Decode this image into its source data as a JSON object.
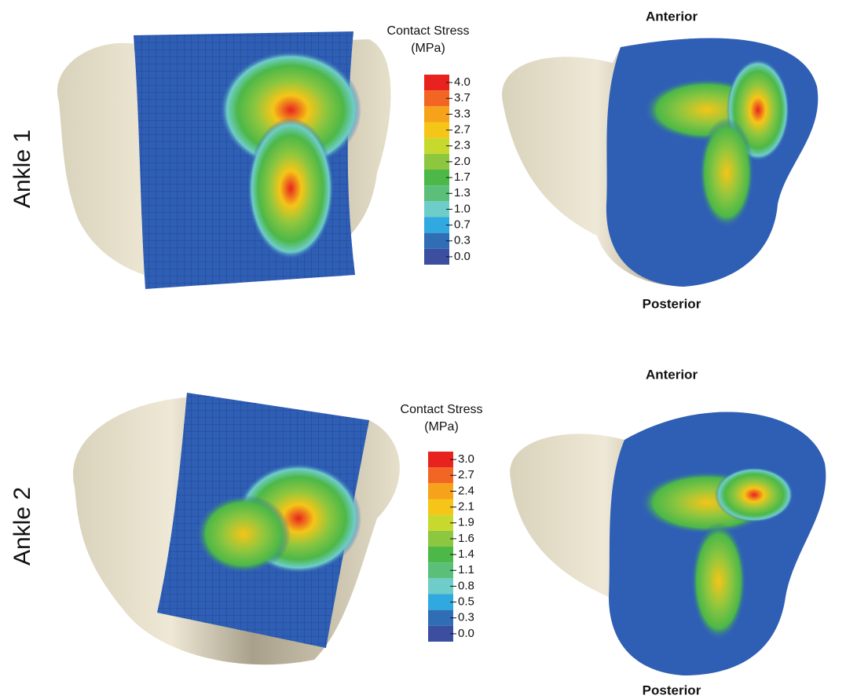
{
  "panels": [
    {
      "row_label": "Ankle 1",
      "legend_title": "Contact Stress",
      "legend_unit": "(MPa)",
      "legend_ticks": [
        "4.0",
        "3.7",
        "3.3",
        "2.7",
        "2.3",
        "2.0",
        "1.7",
        "1.3",
        "1.0",
        "0.7",
        "0.3",
        "0.0"
      ],
      "top_label": "Anterior",
      "bottom_label": "Posterior"
    },
    {
      "row_label": "Ankle 2",
      "legend_title": "Contact Stress",
      "legend_unit": "(MPa)",
      "legend_ticks": [
        "3.0",
        "2.7",
        "2.4",
        "2.1",
        "1.9",
        "1.6",
        "1.4",
        "1.1",
        "0.8",
        "0.5",
        "0.3",
        "0.0"
      ],
      "top_label": "Anterior",
      "bottom_label": "Posterior"
    }
  ]
}
